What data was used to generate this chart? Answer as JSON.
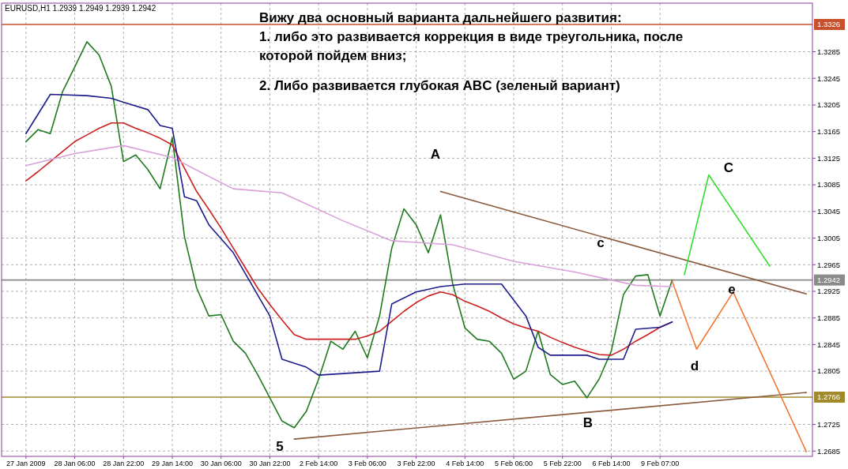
{
  "chart_data": {
    "type": "line",
    "title": "Вижу два основный варианта дальнейшего развития:",
    "subtitle": "EURUSD,H1 1.2939 1.2949 1.2939 1.2942",
    "annotations": [
      "1. либо это развивается коррекция в виде треугольника, после которой пойдем вниз;",
      "2. Либо развивается глубокая ABC (зеленый вариант)",
      "A",
      "B",
      "C",
      "c",
      "d",
      "e",
      "5"
    ],
    "categories": [
      "27 Jan 2009",
      null,
      null,
      null,
      "28 Jan 06:00",
      null,
      null,
      null,
      "28 Jan 22:00",
      null,
      null,
      null,
      "29 Jan 14:00",
      null,
      null,
      null,
      "30 Jan 06:00",
      null,
      null,
      null,
      "30 Jan 22:00",
      null,
      null,
      null,
      "2 Feb 14:00",
      null,
      null,
      null,
      "3 Feb 06:00",
      null,
      null,
      null,
      "3 Feb 22:00",
      null,
      null,
      null,
      "4 Feb 14:00",
      null,
      null,
      null,
      "5 Feb 06:00",
      null,
      null,
      null,
      "5 Feb 22:00",
      null,
      null,
      null,
      "6 Feb 14:00",
      null,
      null,
      null,
      "9 Feb 07:00",
      null,
      null,
      null,
      null,
      null,
      null,
      null,
      null,
      null,
      null,
      null,
      null
    ],
    "ylim": [
      1.2677,
      1.3358
    ],
    "yticks": [
      1.2685,
      1.2725,
      1.2805,
      1.2845,
      1.2885,
      1.2925,
      1.2965,
      1.3005,
      1.3045,
      1.3085,
      1.3125,
      1.3165,
      1.3205,
      1.3245,
      1.3285
    ],
    "grid": true,
    "ref_lines": [
      {
        "axis": "y",
        "value": 1.3326,
        "label": "1.3326",
        "color": "#c8502d"
      },
      {
        "axis": "y",
        "value": 1.2766,
        "label": "1.2766",
        "color": "#a08a2a"
      },
      {
        "axis": "y",
        "value": 1.2942,
        "label": "1.2942",
        "color": "#8a8a8a"
      }
    ],
    "series": [
      {
        "color": "#1f7a1f",
        "values": [
          1.315,
          1.3168,
          1.3162,
          1.3225,
          1.3262,
          1.33,
          1.328,
          1.3233,
          1.312,
          1.313,
          1.3108,
          1.3079,
          1.3156,
          1.3007,
          1.293,
          1.2888,
          1.289,
          1.285,
          1.2832,
          1.28,
          1.2765,
          1.273,
          1.272,
          1.2745,
          1.2793,
          1.285,
          1.2838,
          1.2865,
          1.2825,
          1.2888,
          1.299,
          1.3049,
          1.3025,
          1.2983,
          1.304,
          1.2936,
          1.287,
          1.2853,
          1.285,
          1.2832,
          1.2793,
          1.2805,
          1.2865,
          1.28,
          1.2785,
          1.279,
          1.2765,
          1.2793,
          1.2835,
          1.292,
          1.2948,
          1.295,
          1.2888,
          1.2942,
          null,
          null,
          null,
          null,
          null,
          null,
          null,
          null,
          null,
          null,
          null
        ]
      },
      {
        "color": "#cc1f1f",
        "values": [
          1.3091,
          1.3105,
          1.312,
          1.3135,
          1.315,
          1.316,
          1.317,
          1.3178,
          1.3178,
          1.317,
          1.3163,
          1.3155,
          1.3145,
          1.311,
          1.3075,
          1.3048,
          1.302,
          1.299,
          1.296,
          1.293,
          1.2905,
          1.2882,
          1.286,
          1.2853,
          1.2853,
          1.2853,
          1.2853,
          1.2853,
          1.2858,
          1.2865,
          1.288,
          1.2895,
          1.2908,
          1.2918,
          1.2924,
          1.292,
          1.291,
          1.2903,
          1.2895,
          1.2885,
          1.2876,
          1.287,
          1.2865,
          1.2856,
          1.2848,
          1.2841,
          1.2835,
          1.283,
          1.2829,
          1.2838,
          1.285,
          1.286,
          1.2871,
          1.2879,
          null,
          null,
          null,
          null,
          null,
          null,
          null,
          null,
          null,
          null,
          null
        ]
      },
      {
        "color": "#d9a0d9",
        "values": [
          1.3114,
          null,
          null,
          null,
          1.3132,
          null,
          null,
          null,
          1.3144,
          null,
          null,
          null,
          1.3126,
          null,
          null,
          null,
          null,
          1.3079,
          null,
          null,
          null,
          1.3073,
          null,
          null,
          null,
          null,
          1.3031,
          null,
          null,
          null,
          1.3001,
          null,
          null,
          null,
          null,
          1.2995,
          null,
          null,
          null,
          null,
          1.297,
          null,
          null,
          null,
          null,
          1.2954,
          null,
          null,
          null,
          null,
          1.2934,
          null,
          null,
          1.2932,
          null,
          null,
          null,
          null,
          null,
          null,
          null,
          null,
          null,
          null,
          null
        ]
      },
      {
        "color": "#1c1c8c",
        "values": [
          1.3162,
          null,
          1.3221,
          null,
          null,
          1.3219,
          null,
          1.3215,
          1.3209,
          null,
          1.3198,
          1.3174,
          1.317,
          1.3067,
          1.3061,
          1.3025,
          null,
          1.2983,
          null,
          null,
          1.2888,
          1.2823,
          null,
          1.2811,
          1.2799,
          null,
          null,
          null,
          null,
          1.2805,
          1.2906,
          null,
          1.2924,
          null,
          1.2932,
          null,
          1.2936,
          null,
          null,
          1.2936,
          null,
          1.2888,
          1.2841,
          1.2829,
          null,
          null,
          1.2829,
          1.2823,
          null,
          1.2823,
          1.2868,
          null,
          1.2871,
          1.2879,
          null,
          null,
          null,
          null,
          null,
          null,
          null,
          null,
          null,
          null,
          null
        ]
      },
      {
        "color": "#8b5a3c",
        "values": [
          null,
          null,
          null,
          null,
          null,
          null,
          null,
          null,
          null,
          null,
          null,
          null,
          null,
          null,
          null,
          null,
          null,
          null,
          null,
          null,
          null,
          null,
          null,
          null,
          null,
          null,
          null,
          null,
          null,
          null,
          null,
          null,
          null,
          null,
          1.3075,
          null,
          null,
          null,
          null,
          null,
          null,
          null,
          null,
          null,
          null,
          null,
          null,
          null,
          null,
          null,
          null,
          null,
          null,
          null,
          null,
          null,
          null,
          null,
          null,
          null,
          null,
          null,
          null,
          null,
          1.2921
        ]
      },
      {
        "color": "#8b5a3c",
        "values": [
          null,
          null,
          null,
          null,
          null,
          null,
          null,
          null,
          null,
          null,
          null,
          null,
          null,
          null,
          null,
          null,
          null,
          null,
          null,
          null,
          null,
          null,
          1.2703,
          null,
          null,
          null,
          null,
          null,
          null,
          null,
          null,
          null,
          null,
          null,
          null,
          null,
          null,
          null,
          null,
          null,
          null,
          null,
          null,
          null,
          null,
          null,
          null,
          null,
          null,
          null,
          null,
          null,
          null,
          null,
          null,
          null,
          null,
          null,
          null,
          null,
          null,
          null,
          null,
          null,
          1.2773
        ]
      },
      {
        "color": "#33dd33",
        "values": [
          null,
          null,
          null,
          null,
          null,
          null,
          null,
          null,
          null,
          null,
          null,
          null,
          null,
          null,
          null,
          null,
          null,
          null,
          null,
          null,
          null,
          null,
          null,
          null,
          null,
          null,
          null,
          null,
          null,
          null,
          null,
          null,
          null,
          null,
          null,
          null,
          null,
          null,
          null,
          null,
          null,
          null,
          null,
          null,
          null,
          null,
          null,
          null,
          null,
          null,
          null,
          null,
          null,
          null,
          1.295,
          null,
          1.31,
          null,
          null,
          null,
          null,
          1.2963,
          null,
          null,
          null
        ]
      },
      {
        "color": "#f07830",
        "values": [
          null,
          null,
          null,
          null,
          null,
          null,
          null,
          null,
          null,
          null,
          null,
          null,
          null,
          null,
          null,
          null,
          null,
          null,
          null,
          null,
          null,
          null,
          null,
          null,
          null,
          null,
          null,
          null,
          null,
          null,
          null,
          null,
          null,
          null,
          null,
          null,
          null,
          null,
          null,
          null,
          null,
          null,
          null,
          null,
          null,
          null,
          null,
          null,
          null,
          null,
          null,
          null,
          null,
          1.294,
          null,
          1.2838,
          null,
          null,
          1.2924,
          null,
          null,
          null,
          null,
          null,
          1.2684
        ]
      }
    ]
  }
}
